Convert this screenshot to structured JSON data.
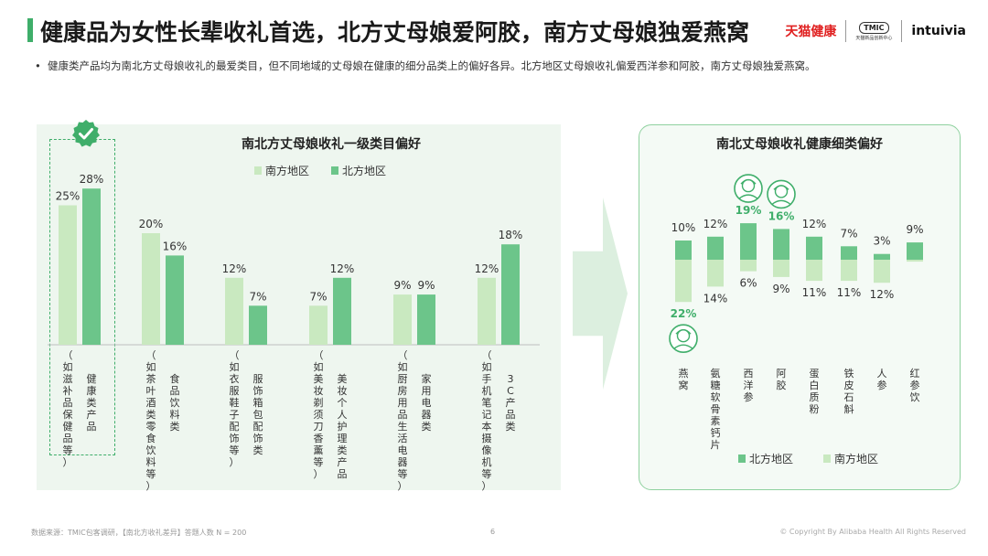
{
  "title": "健康品为女性长辈收礼首选，北方丈母娘爱阿胶，南方丈母娘独爱燕窝",
  "logos": {
    "tmall": "天猫健康",
    "tmic": "TMIC",
    "tmic_sub": "天猫新品创新中心",
    "intuivia": "intuivia"
  },
  "bullet": "健康类产品均为南北方丈母娘收礼的最爱类目，但不同地域的丈母娘在健康的细分品类上的偏好各异。北方地区丈母娘收礼偏爱西洋参和阿胶，南方丈母娘独爱燕窝。",
  "colors": {
    "south": "#c9e9c0",
    "north": "#6cc58a",
    "accent": "#3fae6a"
  },
  "chart_data": [
    {
      "type": "bar",
      "title": "南北方丈母娘收礼一级类目偏好",
      "legend_position": "top",
      "categories": [
        [
          "健康类产品",
          "（如滋补品保健品等）"
        ],
        [
          "食品饮料类",
          "（如茶叶酒类零食饮料等）"
        ],
        [
          "服饰箱包配饰类",
          "（如衣服鞋子配饰等）"
        ],
        [
          "美妆个人护理类产品",
          "（如美妆剃须刀香薰等）"
        ],
        [
          "家用电器类",
          "（如厨房用品生活电器等）"
        ],
        [
          "3C产品类",
          "（如手机笔记本摄像机等）"
        ]
      ],
      "series": [
        {
          "name": "南方地区",
          "values": [
            25,
            20,
            12,
            7,
            9,
            12
          ]
        },
        {
          "name": "北方地区",
          "values": [
            28,
            16,
            7,
            12,
            9,
            18
          ]
        }
      ],
      "value_suffix": "%"
    },
    {
      "type": "bar",
      "title": "南北丈母娘收礼健康细类偏好",
      "legend_position": "bottom",
      "categories": [
        "燕窝",
        "氨糖软骨素钙片",
        "西洋参",
        "阿胶",
        "蛋白质粉",
        "铁皮石斛",
        "人参",
        "红参饮"
      ],
      "series": [
        {
          "name": "北方地区",
          "values": [
            10,
            12,
            19,
            16,
            12,
            7,
            3,
            9
          ]
        },
        {
          "name": "南方地区",
          "values": [
            22,
            14,
            6,
            9,
            11,
            11,
            12,
            1
          ]
        }
      ],
      "labels": {
        "北方地区": [
          "10%",
          "12%",
          "19%",
          "16%",
          "12%",
          "7%",
          "3%",
          "9%"
        ],
        "南方地区": [
          "22%",
          "14%",
          "6%",
          "9%",
          "11%",
          "11%",
          "12%",
          ""
        ]
      },
      "highlight": {
        "北方地区": [
          2,
          3
        ],
        "南方地区": [
          0
        ]
      }
    }
  ],
  "footer": {
    "source": "数据来源：TMIC包客调研，【南北方收礼差异】答题人数 N = 200",
    "page": "6",
    "copyright": "© Copyright By Alibaba Health All Rights Reserved"
  }
}
